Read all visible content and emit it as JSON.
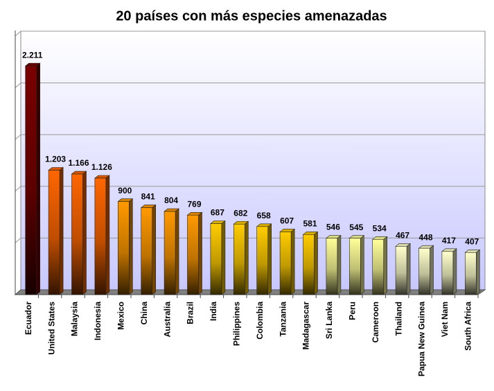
{
  "chart_data": {
    "type": "bar3d",
    "title": "20 países con más especies amenazadas",
    "categories": [
      "Ecuador",
      "United States",
      "Malaysia",
      "Indonesia",
      "Mexico",
      "China",
      "Australia",
      "Brazil",
      "India",
      "Philippines",
      "Colombia",
      "Tanzania",
      "Madagascar",
      "Sri Lanka",
      "Peru",
      "Cameroon",
      "Thailand",
      "Papua New Guinea",
      "Viet Nam",
      "South Africa"
    ],
    "values": [
      2211,
      1203,
      1166,
      1126,
      900,
      841,
      804,
      769,
      687,
      682,
      658,
      607,
      581,
      546,
      545,
      534,
      467,
      448,
      417,
      407
    ],
    "value_labels": [
      "2.211",
      "1.203",
      "1.166",
      "1.126",
      "900",
      "841",
      "804",
      "769",
      "687",
      "682",
      "658",
      "607",
      "581",
      "546",
      "545",
      "534",
      "467",
      "448",
      "417",
      "407"
    ],
    "colors": [
      "#7a0000",
      "#ff6600",
      "#ff6600",
      "#ff6600",
      "#ff9900",
      "#ff9900",
      "#ff9900",
      "#ff9900",
      "#ffcc00",
      "#ffcc00",
      "#ffcc00",
      "#ffcc00",
      "#ffcc00",
      "#ffff99",
      "#ffff99",
      "#ffff99",
      "#ffffcc",
      "#ffffcc",
      "#ffffcc",
      "#ffffcc"
    ],
    "ylim": [
      0,
      2500
    ],
    "yticks": [
      0,
      500,
      1000,
      1500,
      2000,
      2500
    ],
    "grid": true
  }
}
